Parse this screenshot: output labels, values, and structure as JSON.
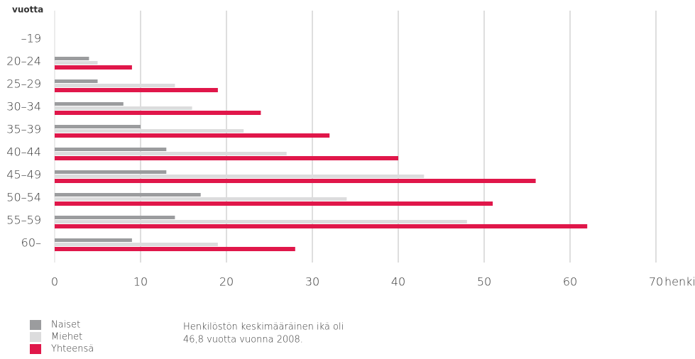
{
  "chart_data": {
    "type": "bar",
    "orientation": "horizontal",
    "y_label": "vuotta",
    "x_label": "henkilöä",
    "categories": [
      "–19",
      "20–24",
      "25–29",
      "30–34",
      "35–39",
      "40–44",
      "45–49",
      "50–54",
      "55–59",
      "60–"
    ],
    "series": [
      {
        "name": "Naiset",
        "color": "#9b9c9e",
        "values": [
          0,
          4,
          5,
          8,
          10,
          13,
          13,
          17,
          14,
          9
        ]
      },
      {
        "name": "Miehet",
        "color": "#dcdcdd",
        "values": [
          0,
          5,
          14,
          16,
          22,
          27,
          43,
          34,
          48,
          19
        ]
      },
      {
        "name": "Yhteensä",
        "color": "#e0174a",
        "values": [
          0,
          9,
          19,
          24,
          32,
          40,
          56,
          51,
          62,
          28
        ]
      }
    ],
    "xlim": [
      0,
      70
    ],
    "xticks": [
      0,
      10,
      20,
      30,
      40,
      50,
      60,
      70
    ],
    "grid": true,
    "note": [
      "Henkilöstön keskimääräinen ikä oli",
      "46,8 vuotta vuonna 2008."
    ]
  }
}
